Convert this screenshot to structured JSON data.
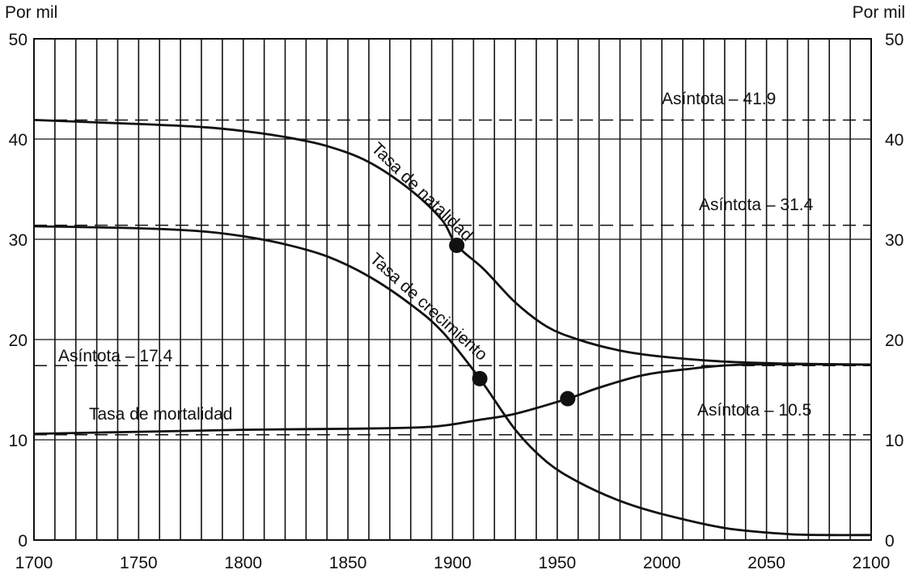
{
  "chart_data": {
    "type": "line",
    "ylabel_left": "Por mil",
    "ylabel_right": "Por mil",
    "xlim": [
      1700,
      2100
    ],
    "ylim": [
      0,
      50
    ],
    "xticks": [
      1700,
      1750,
      1800,
      1850,
      1900,
      1950,
      2000,
      2050,
      2100
    ],
    "yticks": [
      0,
      10,
      20,
      30,
      40,
      50
    ],
    "grid": true,
    "series": [
      {
        "name": "Tasa de natalidad",
        "x": [
          1700,
          1750,
          1780,
          1800,
          1820,
          1840,
          1860,
          1880,
          1895,
          1902,
          1915,
          1930,
          1945,
          1960,
          1980,
          2000,
          2030,
          2060,
          2100
        ],
        "y": [
          41.9,
          41.5,
          41.2,
          40.8,
          40.2,
          39.3,
          37.7,
          34.9,
          31.9,
          29.4,
          27.0,
          23.7,
          21.3,
          20.0,
          18.9,
          18.3,
          17.8,
          17.6,
          17.5
        ]
      },
      {
        "name": "Tasa de crecimiento",
        "x": [
          1700,
          1750,
          1780,
          1800,
          1820,
          1840,
          1860,
          1880,
          1895,
          1913,
          1930,
          1945,
          1960,
          1980,
          2000,
          2030,
          2060,
          2080,
          2100
        ],
        "y": [
          31.3,
          31.1,
          30.8,
          30.3,
          29.5,
          28.3,
          26.3,
          23.5,
          20.8,
          16.1,
          11.0,
          7.8,
          5.8,
          3.9,
          2.6,
          1.2,
          0.6,
          0.5,
          0.5
        ]
      },
      {
        "name": "Tasa de mortalidad",
        "x": [
          1700,
          1750,
          1800,
          1850,
          1890,
          1913,
          1930,
          1955,
          1970,
          1990,
          2010,
          2040,
          2100
        ],
        "y": [
          10.6,
          10.8,
          11.0,
          11.1,
          11.3,
          12.0,
          12.6,
          14.1,
          15.2,
          16.4,
          17.0,
          17.5,
          17.5
        ]
      }
    ],
    "asymptotes": [
      {
        "label": "Asíntota – 41.9",
        "value": 41.9
      },
      {
        "label": "Asíntota – 31.4",
        "value": 31.4
      },
      {
        "label": "Asíntota – 17.4",
        "value": 17.4
      },
      {
        "label": "Asíntota – 10.5",
        "value": 10.5
      }
    ],
    "markers": [
      {
        "series": "Tasa de natalidad",
        "x": 1902,
        "y": 29.4
      },
      {
        "series": "Tasa de crecimiento",
        "x": 1913,
        "y": 16.1
      },
      {
        "series": "Tasa de mortalidad",
        "x": 1955,
        "y": 14.1
      }
    ]
  }
}
